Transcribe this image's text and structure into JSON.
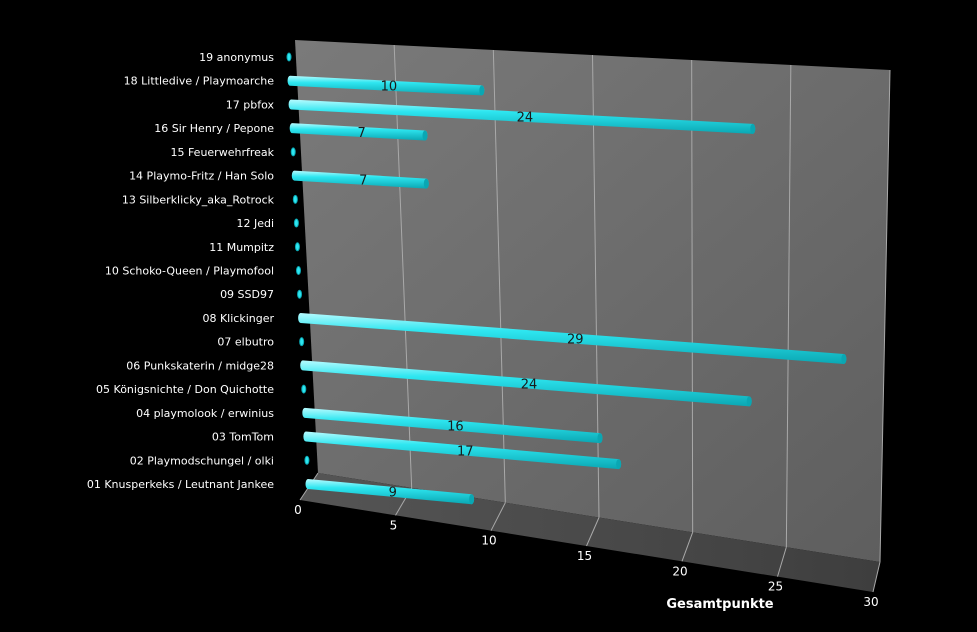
{
  "chart_data": {
    "type": "bar",
    "orientation": "horizontal",
    "style": "3d-cylinder",
    "title": "",
    "xlabel": "Gesamtpunkte",
    "ylabel": "",
    "xlim": [
      0,
      30
    ],
    "x_ticks": [
      "0",
      "5",
      "10",
      "15",
      "20",
      "25",
      "30"
    ],
    "grid": true,
    "legend": "none",
    "colors": {
      "background": "#000000",
      "bar": "#2ee6f0",
      "bar_dark": "#0aa7b3",
      "bar_light": "#b6fbff",
      "wall": "#6f6f6f",
      "floor": "#4a4a4a",
      "grid": "#a9a9a9",
      "text": "#ffffff",
      "data_label": "#1a1a1a"
    },
    "categories": [
      "19 anonymus",
      "18 Littledive / Playmoarche",
      "17 pbfox",
      "16 Sir Henry / Pepone",
      "15 Feuerwehrfreak",
      "14 Playmo-Fritz / Han Solo",
      "13 Silberklicky_aka_Rotrock",
      "12 Jedi",
      "11 Mumpitz",
      "10 Schoko-Queen / Playmofool",
      "09 SSD97",
      "08 Klickinger",
      "07 elbutro",
      "06 Punkskaterin / midge28",
      "05 Königsnichte / Don Quichotte",
      "04 playmolook / erwinius",
      "03 TomTom",
      "02 Playmodschungel / olki",
      "01 Knusperkeks / Leutnant Jankee"
    ],
    "values": [
      0,
      10,
      24,
      7,
      0,
      7,
      0,
      0,
      0,
      0,
      0,
      29,
      0,
      24,
      0,
      16,
      17,
      0,
      9
    ],
    "data_labels": [
      "",
      "10",
      "24",
      "7",
      "",
      "7",
      "",
      "",
      "",
      "",
      "",
      "29",
      "",
      "24",
      "",
      "16",
      "17",
      "",
      "9"
    ]
  }
}
